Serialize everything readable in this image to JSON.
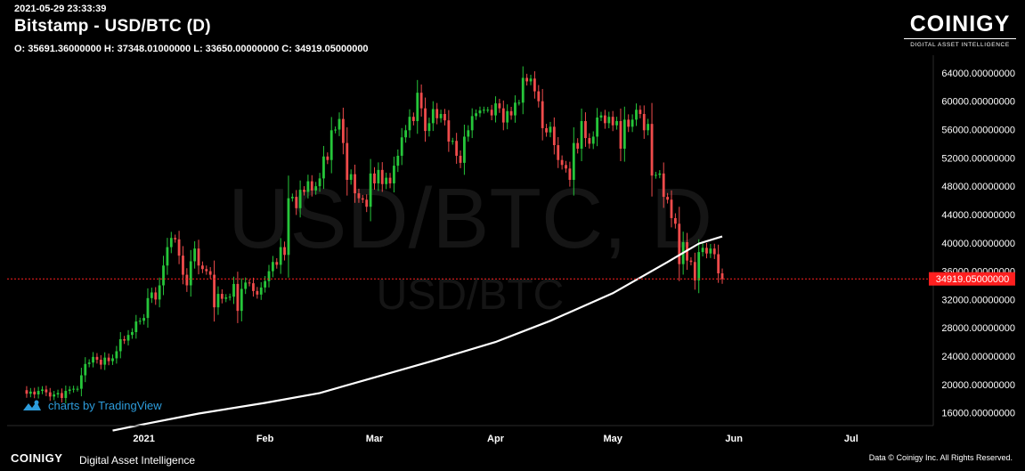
{
  "header": {
    "timestamp": "2021-05-29 23:33:39",
    "title": "Bitstamp - USD/BTC (D)",
    "ohlc": "O: 35691.36000000 H: 37348.01000000 L: 33650.00000000 C: 34919.05000000",
    "indicator": "MA"
  },
  "logo": {
    "word": "COINIGY",
    "tagline": "DIGITAL ASSET INTELLIGENCE"
  },
  "watermark": {
    "main": "USD/BTC, D",
    "sub": "USD/BTC"
  },
  "tradingview": {
    "label": "charts by TradingView",
    "icon": "tradingview-logo-icon"
  },
  "footer": {
    "brand": "COINIGY",
    "tagline": "Digital Asset Intelligence",
    "copyright": "Data © Coinigy Inc.  All Rights Reserved."
  },
  "colors": {
    "up": "#26c63a",
    "down": "#ef4b4b",
    "ma": "#ffffff",
    "last_price": "#ff1f1f",
    "axis_text": "#ffffff"
  },
  "chart_data": {
    "type": "candlestick",
    "exchange": "Bitstamp",
    "symbol": "USD/BTC",
    "interval": "D",
    "x_ticks": [
      {
        "label": "2021",
        "date": "2021-01-01"
      },
      {
        "label": "Feb",
        "date": "2021-02-01"
      },
      {
        "label": "Mar",
        "date": "2021-03-01"
      },
      {
        "label": "Apr",
        "date": "2021-04-01"
      },
      {
        "label": "May",
        "date": "2021-05-01"
      },
      {
        "label": "Jun",
        "date": "2021-06-01"
      },
      {
        "label": "Jul",
        "date": "2021-07-01"
      }
    ],
    "x_range": [
      "2020-11-27",
      "2021-07-22"
    ],
    "y_ticks": [
      16000,
      20000,
      24000,
      28000,
      32000,
      36000,
      40000,
      44000,
      48000,
      52000,
      56000,
      60000,
      64000
    ],
    "y_tick_labels": [
      "16000.00000000",
      "20000.00000000",
      "24000.00000000",
      "28000.00000000",
      "32000.00000000",
      "36000.00000000",
      "40000.00000000",
      "44000.00000000",
      "48000.00000000",
      "52000.00000000",
      "56000.00000000",
      "60000.00000000",
      "64000.00000000"
    ],
    "ylim": [
      14200,
      66500
    ],
    "last_price": 34919.05,
    "last_price_label": "34919.05000000",
    "candles_start": "2020-12-01",
    "closes": [
      19200,
      18700,
      19000,
      18600,
      19100,
      19300,
      18900,
      18300,
      18600,
      18800,
      18100,
      19100,
      19300,
      19400,
      19400,
      21300,
      22900,
      23100,
      23900,
      23500,
      22800,
      23800,
      23300,
      23700,
      24700,
      26400,
      26200,
      27000,
      27400,
      28900,
      29000,
      29400,
      32200,
      33000,
      32000,
      34000,
      36800,
      39400,
      40700,
      40500,
      38200,
      35500,
      34000,
      37400,
      39200,
      36800,
      36300,
      36000,
      35500,
      30900,
      32800,
      32100,
      32300,
      32400,
      34200,
      30400,
      33500,
      34400,
      34300,
      33200,
      32700,
      33700,
      34600,
      36000,
      37300,
      36900,
      39400,
      38300,
      46300,
      46500,
      44900,
      47500,
      47200,
      48700,
      47400,
      48000,
      49100,
      52200,
      51700,
      55900,
      56000,
      57500,
      54100,
      48900,
      49700,
      47000,
      46300,
      46100,
      45100,
      49800,
      48400,
      50300,
      48300,
      49200,
      48400,
      50900,
      52300,
      54900,
      55900,
      57800,
      57200,
      61200,
      59000,
      55800,
      56900,
      58900,
      57600,
      58200,
      57300,
      54300,
      54400,
      52300,
      51300,
      55000,
      55900,
      57900,
      58300,
      58700,
      58800,
      58800,
      58000,
      59700,
      59000,
      57000,
      58600,
      58000,
      59800,
      59800,
      63300,
      62800,
      63200,
      61400,
      60000,
      56200,
      55600,
      56400,
      53800,
      51700,
      51000,
      50500,
      48900,
      54100,
      53300,
      57200,
      54800,
      54000,
      55000,
      57700,
      58000,
      56900,
      57800,
      56600,
      57200,
      53300,
      57400,
      56400,
      57400,
      58800,
      58200,
      55900,
      56800,
      49500,
      49600,
      49800,
      46500,
      46100,
      43500,
      42700,
      37000,
      40100,
      37500,
      37300,
      34700,
      38700,
      39300,
      38500,
      39200,
      38400,
      35700,
      34900
    ],
    "ma_series": [
      {
        "date": "2020-12-24",
        "value": 13500
      },
      {
        "date": "2021-01-01",
        "value": 14400
      },
      {
        "date": "2021-01-15",
        "value": 15900
      },
      {
        "date": "2021-02-01",
        "value": 17400
      },
      {
        "date": "2021-02-15",
        "value": 18800
      },
      {
        "date": "2021-03-01",
        "value": 21000
      },
      {
        "date": "2021-03-15",
        "value": 23200
      },
      {
        "date": "2021-04-01",
        "value": 26000
      },
      {
        "date": "2021-04-15",
        "value": 29000
      },
      {
        "date": "2021-05-01",
        "value": 32900
      },
      {
        "date": "2021-05-15",
        "value": 37300
      },
      {
        "date": "2021-05-23",
        "value": 39900
      },
      {
        "date": "2021-05-29",
        "value": 40900
      }
    ]
  }
}
